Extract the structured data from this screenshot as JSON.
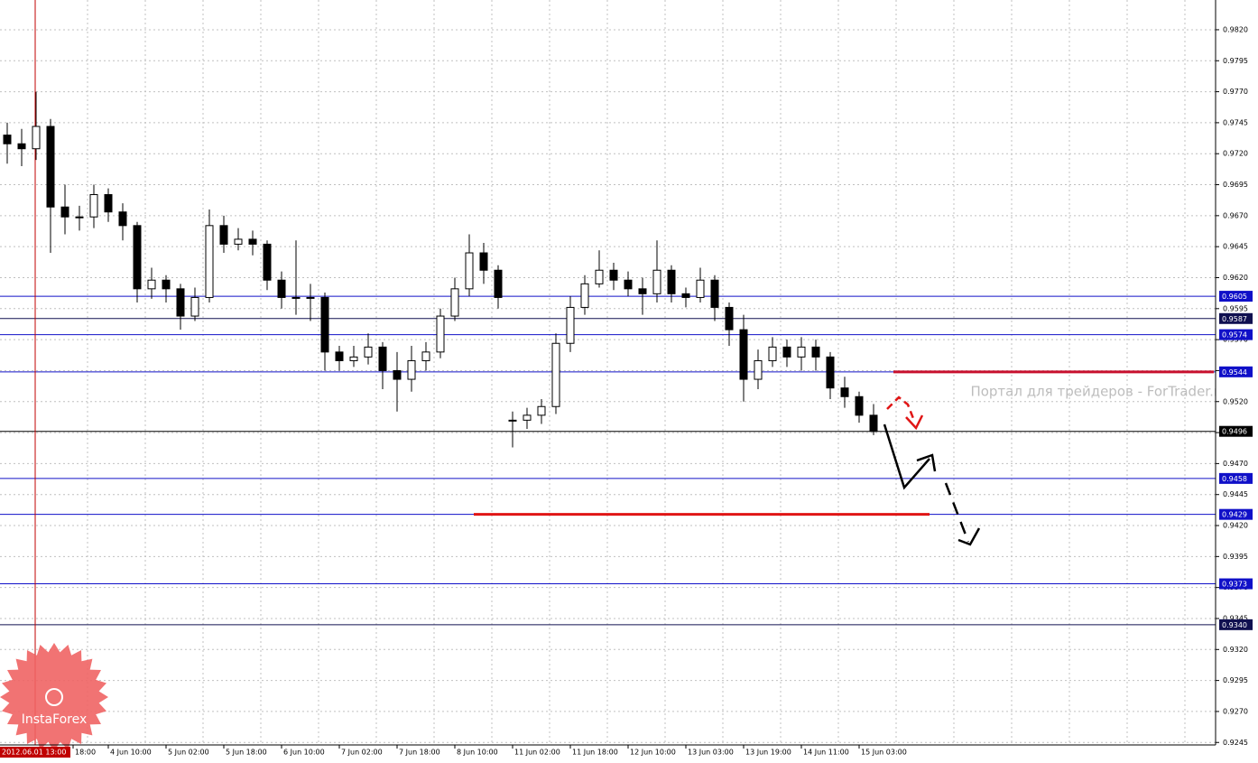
{
  "chart_data": {
    "type": "candlestick",
    "ohlc": [
      [
        0.9735,
        0.9745,
        0.9712,
        0.9728
      ],
      [
        0.9728,
        0.974,
        0.971,
        0.9724
      ],
      [
        0.9724,
        0.977,
        0.9715,
        0.9742
      ],
      [
        0.9742,
        0.9748,
        0.964,
        0.9677
      ],
      [
        0.9677,
        0.9695,
        0.9655,
        0.9669
      ],
      [
        0.9669,
        0.9678,
        0.9658,
        0.9669
      ],
      [
        0.9669,
        0.9695,
        0.966,
        0.9687
      ],
      [
        0.9687,
        0.9692,
        0.9665,
        0.9673
      ],
      [
        0.9673,
        0.968,
        0.965,
        0.9662
      ],
      [
        0.9662,
        0.9665,
        0.96,
        0.9611
      ],
      [
        0.9611,
        0.9628,
        0.9603,
        0.9618
      ],
      [
        0.9618,
        0.9622,
        0.96,
        0.9611
      ],
      [
        0.9611,
        0.9615,
        0.9578,
        0.9589
      ],
      [
        0.9589,
        0.9612,
        0.9585,
        0.9604
      ],
      [
        0.9604,
        0.9675,
        0.96,
        0.9662
      ],
      [
        0.9662,
        0.967,
        0.964,
        0.9647
      ],
      [
        0.9647,
        0.966,
        0.9642,
        0.9651
      ],
      [
        0.9651,
        0.9658,
        0.9638,
        0.9647
      ],
      [
        0.9647,
        0.965,
        0.961,
        0.9618
      ],
      [
        0.9618,
        0.9625,
        0.9595,
        0.9604
      ],
      [
        0.9604,
        0.965,
        0.959,
        0.9604
      ],
      [
        0.9604,
        0.9615,
        0.9585,
        0.9604
      ],
      [
        0.9604,
        0.9608,
        0.9545,
        0.956
      ],
      [
        0.956,
        0.9565,
        0.9545,
        0.9553
      ],
      [
        0.9553,
        0.9565,
        0.9548,
        0.9556
      ],
      [
        0.9556,
        0.9575,
        0.955,
        0.9564
      ],
      [
        0.9564,
        0.9568,
        0.953,
        0.9545
      ],
      [
        0.9545,
        0.956,
        0.9512,
        0.9538
      ],
      [
        0.9538,
        0.9565,
        0.9528,
        0.9553
      ],
      [
        0.9553,
        0.9568,
        0.9545,
        0.956
      ],
      [
        0.956,
        0.9595,
        0.9555,
        0.9589
      ],
      [
        0.9589,
        0.962,
        0.9585,
        0.9611
      ],
      [
        0.9611,
        0.9655,
        0.9605,
        0.964
      ],
      [
        0.964,
        0.9648,
        0.9615,
        0.9626
      ],
      [
        0.9626,
        0.963,
        0.9595,
        0.9604
      ],
      [
        0.9505,
        0.9512,
        0.9483,
        0.9505
      ],
      [
        0.9505,
        0.9515,
        0.9498,
        0.9509
      ],
      [
        0.9509,
        0.9522,
        0.9502,
        0.9516
      ],
      [
        0.9516,
        0.9575,
        0.951,
        0.9567
      ],
      [
        0.9567,
        0.9605,
        0.956,
        0.9596
      ],
      [
        0.9596,
        0.9622,
        0.959,
        0.9615
      ],
      [
        0.9615,
        0.9642,
        0.9612,
        0.9626
      ],
      [
        0.9626,
        0.9632,
        0.961,
        0.9618
      ],
      [
        0.9618,
        0.9625,
        0.9605,
        0.9611
      ],
      [
        0.9611,
        0.962,
        0.959,
        0.9607
      ],
      [
        0.9607,
        0.965,
        0.96,
        0.9626
      ],
      [
        0.9626,
        0.963,
        0.96,
        0.9607
      ],
      [
        0.9607,
        0.9612,
        0.9596,
        0.9604
      ],
      [
        0.9604,
        0.9628,
        0.96,
        0.9618
      ],
      [
        0.9618,
        0.9622,
        0.9585,
        0.9596
      ],
      [
        0.9596,
        0.96,
        0.9565,
        0.9578
      ],
      [
        0.9578,
        0.959,
        0.952,
        0.9538
      ],
      [
        0.9538,
        0.9562,
        0.953,
        0.9553
      ],
      [
        0.9553,
        0.9572,
        0.9548,
        0.9564
      ],
      [
        0.9564,
        0.957,
        0.9548,
        0.9556
      ],
      [
        0.9556,
        0.9572,
        0.9545,
        0.9564
      ],
      [
        0.9564,
        0.957,
        0.9545,
        0.9556
      ],
      [
        0.9556,
        0.956,
        0.9522,
        0.9531
      ],
      [
        0.9531,
        0.954,
        0.9515,
        0.9524
      ],
      [
        0.9524,
        0.9528,
        0.9503,
        0.9509
      ],
      [
        0.9509,
        0.9518,
        0.9493,
        0.9496
      ]
    ],
    "ylim": [
      0.9243,
      0.9844
    ],
    "yticks": [
      {
        "value": 0.982,
        "label": "0.9820"
      },
      0.9795,
      {
        "value": 0.977,
        "label": "0.9770"
      },
      0.9745,
      {
        "value": 0.972,
        "label": "0.9720"
      },
      0.9695,
      {
        "value": 0.967,
        "label": "0.9670"
      },
      0.9645,
      {
        "value": 0.962,
        "label": "0.9620"
      },
      0.9595,
      {
        "value": 0.957,
        "label": "0.9570"
      },
      0.9545,
      {
        "value": 0.952,
        "label": "0.9520"
      },
      0.9495,
      {
        "value": 0.947,
        "label": "0.9470"
      },
      0.9445,
      {
        "value": 0.942,
        "label": "0.9420"
      },
      0.9395,
      {
        "value": 0.937,
        "label": "0.9370"
      },
      0.9345,
      {
        "value": 0.932,
        "label": "0.9320"
      },
      0.9295,
      {
        "value": 0.927,
        "label": "0.9270"
      },
      0.9245
    ],
    "grid": true,
    "x_labels": [
      "18:00",
      "4 Jun 10:00",
      "5 Jun 02:00",
      "5 Jun 18:00",
      "6 Jun 10:00",
      "7 Jun 02:00",
      "7 Jun 18:00",
      "8 Jun 10:00",
      "11 Jun 02:00",
      "11 Jun 18:00",
      "12 Jun 10:00",
      "13 Jun 03:00",
      "13 Jun 19:00",
      "14 Jun 11:00",
      "15 Jun 03:00"
    ],
    "cursor_label": "2012.06.01 13:00",
    "levels": [
      {
        "value": 0.9605,
        "label": "0.9605",
        "color": "#1010c8"
      },
      {
        "value": 0.9587,
        "label": "0.9587",
        "color": "#101050"
      },
      {
        "value": 0.9574,
        "label": "0.9574",
        "color": "#1010c8"
      },
      {
        "value": 0.9544,
        "label": "0.9544",
        "color": "#1010c8"
      },
      {
        "value": 0.9496,
        "label": "0.9496",
        "color": "#000000"
      },
      {
        "value": 0.9458,
        "label": "0.9458",
        "color": "#1010c8"
      },
      {
        "value": 0.9429,
        "label": "0.9429",
        "color": "#1010c8"
      },
      {
        "value": 0.9373,
        "label": "0.9373",
        "color": "#1010c8"
      },
      {
        "value": 0.934,
        "label": "0.9340",
        "color": "#101050"
      }
    ],
    "annotation_lines": [
      {
        "value": 0.9544,
        "color": "#c8102e"
      },
      {
        "value": 0.9429,
        "color": "#e01515"
      }
    ],
    "watermark": "Портал для трейдеров - ForTrader.ru",
    "logo": "InstaForex"
  }
}
